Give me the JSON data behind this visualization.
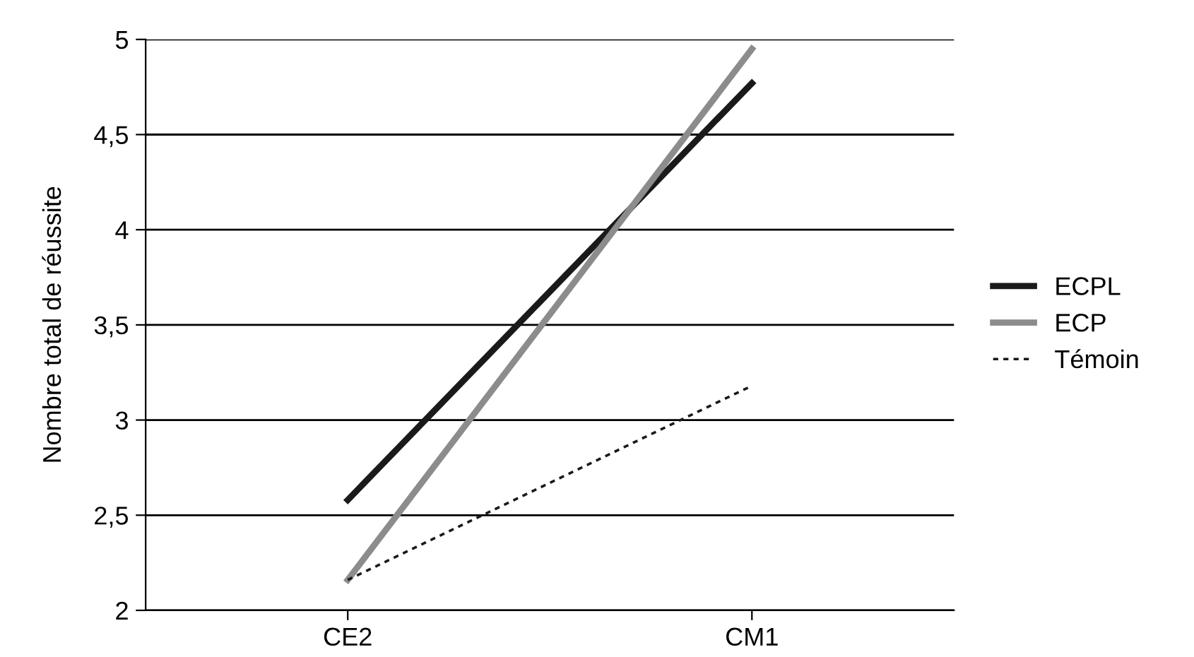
{
  "chart_data": {
    "type": "line",
    "ylabel": "Nombre total de réussite",
    "categories": [
      "CE2",
      "CM1"
    ],
    "series": [
      {
        "name": "ECPL",
        "color": "#1a1a1a",
        "values": [
          2.58,
          4.77
        ],
        "line_style": "solid"
      },
      {
        "name": "ECP",
        "color": "#8c8c8c",
        "values": [
          2.16,
          4.95
        ],
        "line_style": "solid"
      },
      {
        "name": "Témoin",
        "color": "#1a1a1a",
        "values": [
          2.16,
          3.18
        ],
        "line_style": "dotted"
      }
    ],
    "ylim": [
      2,
      5
    ],
    "yticks": [
      2,
      {
        "value": 2.5,
        "label": "2,5"
      },
      3,
      {
        "value": 3.5,
        "label": "3,5"
      },
      4,
      {
        "value": 4.5,
        "label": "4,5"
      },
      5
    ],
    "grid": "y",
    "legend": "right",
    "marker": "none"
  }
}
